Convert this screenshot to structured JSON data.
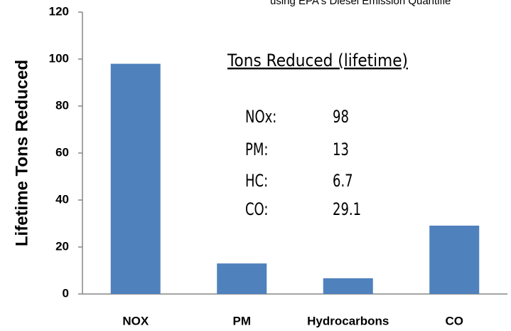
{
  "chart_data": {
    "type": "bar",
    "note": "using EPA's Diesel Emission Quantifie",
    "y_label": "Lifetime Tons Reduced",
    "categories": [
      "NOX",
      "PM",
      "Hydrocarbons",
      "CO"
    ],
    "values": [
      98,
      13,
      6.7,
      29.1
    ],
    "color": "#4f81bd",
    "ylim": [
      0,
      120
    ],
    "yticks": [
      0,
      20,
      40,
      60,
      80,
      100,
      120
    ],
    "annotation": {
      "title": "Tons Reduced (lifetime)",
      "rows": [
        [
          "NOx:",
          "98"
        ],
        [
          "PM:",
          "13"
        ],
        [
          "HC:",
          "6.7"
        ],
        [
          "CO:",
          "29.1"
        ]
      ]
    }
  }
}
